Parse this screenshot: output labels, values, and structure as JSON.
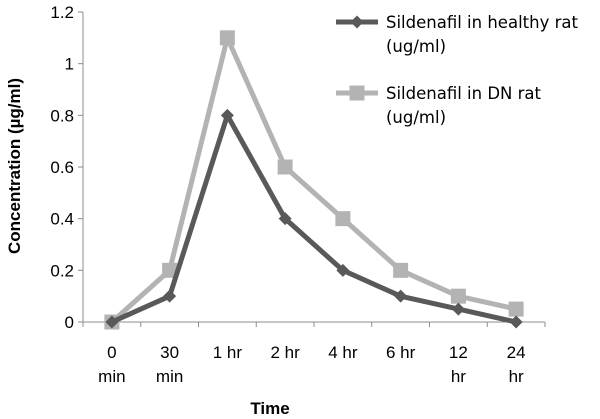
{
  "chart_data": {
    "type": "line",
    "title": "",
    "xlabel": "Time",
    "ylabel": "Concentration (µg/ml)",
    "ylim": [
      0,
      1.2
    ],
    "yticks": [
      "0",
      "0.2",
      "0.4",
      "0.6",
      "0.8",
      "1",
      "1.2"
    ],
    "grid": false,
    "legend_position": "top-right",
    "categories": [
      [
        "0",
        "min"
      ],
      [
        "30",
        "min"
      ],
      [
        "1 hr"
      ],
      [
        "2 hr"
      ],
      [
        "4 hr"
      ],
      [
        "6 hr"
      ],
      [
        "12",
        "hr"
      ],
      [
        "24",
        "hr"
      ]
    ],
    "series": [
      {
        "name_lines": [
          "Sildenafil in healthy rat",
          "(ug/ml)"
        ],
        "marker": "diamond",
        "color": "#595959",
        "values": [
          0,
          0.1,
          0.8,
          0.4,
          0.2,
          0.1,
          0.05,
          0
        ]
      },
      {
        "name_lines": [
          "Sildenafil in DN rat",
          "(ug/ml)"
        ],
        "marker": "square",
        "color": "#b3b3b3",
        "values": [
          0,
          0.2,
          1.1,
          0.6,
          0.4,
          0.2,
          0.1,
          0.05
        ]
      }
    ]
  }
}
